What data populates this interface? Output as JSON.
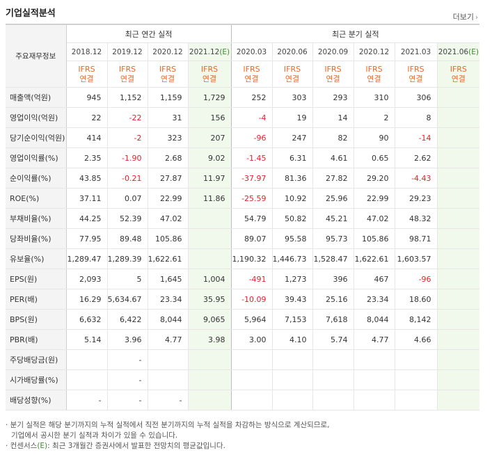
{
  "title": "기업실적분석",
  "more": "더보기",
  "headers": {
    "label": "주요재무정보",
    "annual": "최근 연간 실적",
    "quarter": "최근 분기 실적",
    "annual_dates": [
      "2018.12",
      "2019.12",
      "2020.12",
      "2021.12"
    ],
    "quarter_dates": [
      "2020.03",
      "2020.06",
      "2020.09",
      "2020.12",
      "2021.03",
      "2021.06"
    ],
    "est_suffix": "(E)",
    "ifrs_line1": "IFRS",
    "ifrs_line2": "연결"
  },
  "rows": [
    {
      "label": "매출액(억원)",
      "values": [
        "945",
        "1,152",
        "1,159",
        "1,729",
        "252",
        "303",
        "293",
        "310",
        "306",
        ""
      ]
    },
    {
      "label": "영업이익(억원)",
      "values": [
        "22",
        "-22",
        "31",
        "156",
        "-4",
        "19",
        "14",
        "2",
        "8",
        ""
      ]
    },
    {
      "label": "당기순이익(억원)",
      "values": [
        "414",
        "-2",
        "323",
        "207",
        "-96",
        "247",
        "82",
        "90",
        "-14",
        ""
      ]
    },
    {
      "label": "영업이익률(%)",
      "values": [
        "2.35",
        "-1.90",
        "2.68",
        "9.02",
        "-1.45",
        "6.31",
        "4.61",
        "0.65",
        "2.62",
        ""
      ]
    },
    {
      "label": "순이익률(%)",
      "values": [
        "43.85",
        "-0.21",
        "27.87",
        "11.97",
        "-37.97",
        "81.36",
        "27.82",
        "29.20",
        "-4.43",
        ""
      ]
    },
    {
      "label": "ROE(%)",
      "values": [
        "37.11",
        "0.07",
        "22.99",
        "11.86",
        "-25.59",
        "10.92",
        "25.96",
        "22.99",
        "29.23",
        ""
      ]
    },
    {
      "label": "부채비율(%)",
      "values": [
        "44.25",
        "52.39",
        "47.02",
        "",
        "54.79",
        "50.82",
        "45.21",
        "47.02",
        "48.32",
        ""
      ]
    },
    {
      "label": "당좌비율(%)",
      "values": [
        "77.95",
        "89.48",
        "105.86",
        "",
        "89.07",
        "95.58",
        "95.73",
        "105.86",
        "98.71",
        ""
      ]
    },
    {
      "label": "유보율(%)",
      "values": [
        "1,289.47",
        "1,289.39",
        "1,622.61",
        "",
        "1,190.32",
        "1,446.73",
        "1,528.47",
        "1,622.61",
        "1,603.57",
        ""
      ]
    },
    {
      "label": "EPS(원)",
      "values": [
        "2,093",
        "5",
        "1,645",
        "1,004",
        "-491",
        "1,273",
        "396",
        "467",
        "-96",
        ""
      ]
    },
    {
      "label": "PER(배)",
      "values": [
        "16.29",
        "5,634.67",
        "23.34",
        "35.95",
        "-10.09",
        "39.43",
        "25.16",
        "23.34",
        "18.60",
        ""
      ]
    },
    {
      "label": "BPS(원)",
      "values": [
        "6,632",
        "6,422",
        "8,044",
        "9,065",
        "5,964",
        "7,153",
        "7,618",
        "8,044",
        "8,142",
        ""
      ]
    },
    {
      "label": "PBR(배)",
      "values": [
        "5.14",
        "3.96",
        "4.77",
        "3.98",
        "3.00",
        "4.10",
        "5.74",
        "4.77",
        "4.66",
        ""
      ]
    },
    {
      "label": "주당배당금(원)",
      "values": [
        "",
        "-",
        "",
        "",
        "",
        "",
        "",
        "",
        "",
        ""
      ]
    },
    {
      "label": "시가배당률(%)",
      "values": [
        "",
        "-",
        "",
        "",
        "",
        "",
        "",
        "",
        "",
        ""
      ]
    },
    {
      "label": "배당성향(%)",
      "values": [
        "-",
        "-",
        "-",
        "",
        "",
        "",
        "",
        "",
        "",
        ""
      ]
    }
  ],
  "notes": {
    "line1": "· 분기 실적은 해당 분기까지의 누적 실적에서 직전 분기까지의 누적 실적을 차감하는 방식으로 계산되므로,",
    "line2": "기업에서 공시한 분기 실적과 차이가 있을 수 있습니다.",
    "line3_prefix": "· 컨센서스",
    "line3_e": "(E)",
    "line3_rest": ": 최근 3개월간 증권사에서 발표한 전망치의 평균값입니다."
  },
  "colors": {
    "accent": "#f26522",
    "negative": "#e4202a",
    "estimate_bg": "#f1f8ec",
    "estimate_text": "#3b8a2b"
  }
}
